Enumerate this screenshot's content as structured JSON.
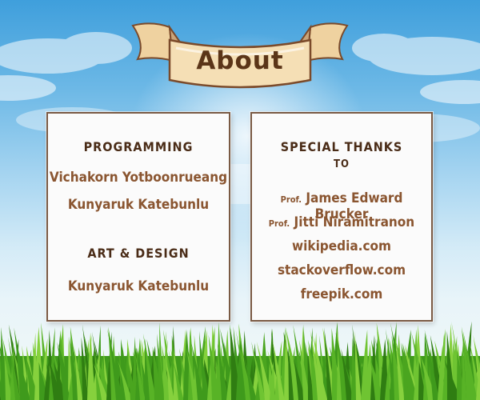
{
  "banner": {
    "title": "About"
  },
  "programming": {
    "heading": "PROGRAMMING",
    "names": [
      "Vichakorn Yotboonrueang",
      "Kunyaruk Katebunlu"
    ]
  },
  "art_design": {
    "heading": "ART & DESIGN",
    "names": [
      "Kunyaruk Katebunlu"
    ]
  },
  "special_thanks": {
    "heading": "SPECIAL THANKS",
    "subheading": "TO",
    "people": [
      {
        "prefix": "Prof.",
        "name": "James Edward Brucker"
      },
      {
        "prefix": "Prof.",
        "name": "Jitti Niramitranon"
      }
    ],
    "sites": [
      "wikipedia.com",
      "stackoverflow.com",
      "freepik.com"
    ]
  },
  "colors": {
    "heading": "#4a2c17",
    "credit": "#8a5530",
    "panel_border": "#7a5a44",
    "banner_fill": "#f5dfb5",
    "banner_outline": "#7b4a2a"
  }
}
